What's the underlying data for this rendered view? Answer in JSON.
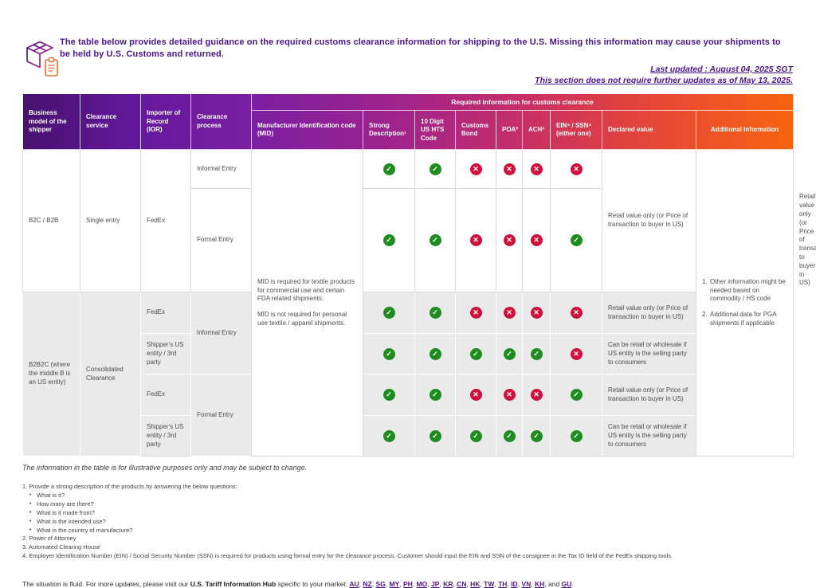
{
  "header": {
    "intro": "The table below provides detailed guidance on the required customs clearance information for shipping to the U.S. Missing this information may cause your shipments to be held by U.S. Customs and returned.",
    "last_updated": "Last updated : August 04, 2025 SGT",
    "update_note": "This section does not require further updates as of May 13, 2025."
  },
  "colors": {
    "brand_purple": "#4D148C",
    "brand_orange": "#F6640E",
    "check_green": "#1F8C1F",
    "cross_red": "#D0103C"
  },
  "table": {
    "span_header": "Required information for customs clearance",
    "headers": {
      "business_model": "Business model of the shipper",
      "clearance_service": "Clearance service",
      "ior": "Importer of Record (IOR)",
      "clearance_process": "Clearance process",
      "mid": "Manufacturer Identification code (MID)",
      "strong_description": "Strong Description¹",
      "hts": "10 Digit US HTS Code",
      "customs_bond": "Customs Bond",
      "poa": "POA²",
      "ach": "ACH³",
      "ein_ssn": "EIN⁴ / SSN⁴ (either one)",
      "declared_value": "Declared value",
      "additional_information": "Additional Information"
    },
    "mid_note_1": "MID is required for textile products for commercial use and certain FDA related shipments.",
    "mid_note_2": "MID is not required for personal use textile / apparel shipments.",
    "additional_info": [
      {
        "num": "1.",
        "text": "Other information might be needed based on commodity / HS code"
      },
      {
        "num": "2.",
        "text": "Additional data for PGA shipments if applicable"
      }
    ],
    "b2c": {
      "model": "B2C / B2B",
      "service": "Single entry",
      "ior": "FedEx",
      "declared": "Retail value only (or Price of transaction to buyer in US)",
      "rows": [
        {
          "process": "Informal Entry",
          "flags": [
            true,
            true,
            false,
            false,
            false,
            false
          ]
        },
        {
          "process": "Formal Entry",
          "flags": [
            true,
            true,
            false,
            false,
            false,
            true
          ]
        }
      ]
    },
    "b2b2c": {
      "model": "B2B2C (where the middle B is an US entity)",
      "service": "Consolidated Clearance",
      "groups": [
        {
          "process": "Informal Entry",
          "rows": [
            {
              "ior": "FedEx",
              "flags": [
                true,
                true,
                false,
                false,
                false,
                false
              ],
              "declared": "Retail value only (or Price of transaction to buyer in US)"
            },
            {
              "ior": "Shipper's US entity / 3rd party",
              "flags": [
                true,
                true,
                true,
                true,
                true,
                false
              ],
              "declared": "Can be retail or wholesale if US entity is the selling party to consumers"
            }
          ]
        },
        {
          "process": "Formal Entry",
          "rows": [
            {
              "ior": "FedEx",
              "flags": [
                true,
                true,
                false,
                false,
                false,
                true
              ],
              "declared": "Retail value only (or Price of transaction to buyer in US)"
            },
            {
              "ior": "Shipper's US entity / 3rd party",
              "flags": [
                true,
                true,
                true,
                true,
                true,
                true
              ],
              "declared": "Can be retail or wholesale if US entity is the selling party to consumers"
            }
          ]
        }
      ]
    }
  },
  "footnotes": {
    "disclaimer": "The information in the table is for illustrative purposes only and may be subject to change.",
    "n1": "1. Provide a strong description of the products by answering the below questions:",
    "n1_bullets": [
      "What is it?",
      "How many are there?",
      "What is it made from?",
      "What is the intended use?",
      "What is the country of manufacture?"
    ],
    "n2": "2. Power of Attorney",
    "n3": "3. Automated Clearing House",
    "n4": "4. Employer Identification Number (EIN) / Social Security Number (SSN)  is required for products using formal entry for the clearance process.  Customer should input the EIN and SSN of the consignee in the Tax ID field of the FedEx shipping tools."
  },
  "footer": {
    "text_before": "The situation is fluid. For more updates, please visit our",
    "hub_label": "U.S. Tariff Information Hub",
    "text_after": "specific to your market:",
    "markets": [
      "AU",
      "NZ",
      "SG",
      "MY",
      "PH",
      "MO",
      "JP",
      "KR",
      "CN",
      "HK",
      "TW",
      "TH",
      "ID",
      "VN",
      "KH",
      "GU"
    ],
    "sep": ", ",
    "and_word": "and ",
    "period": "."
  }
}
